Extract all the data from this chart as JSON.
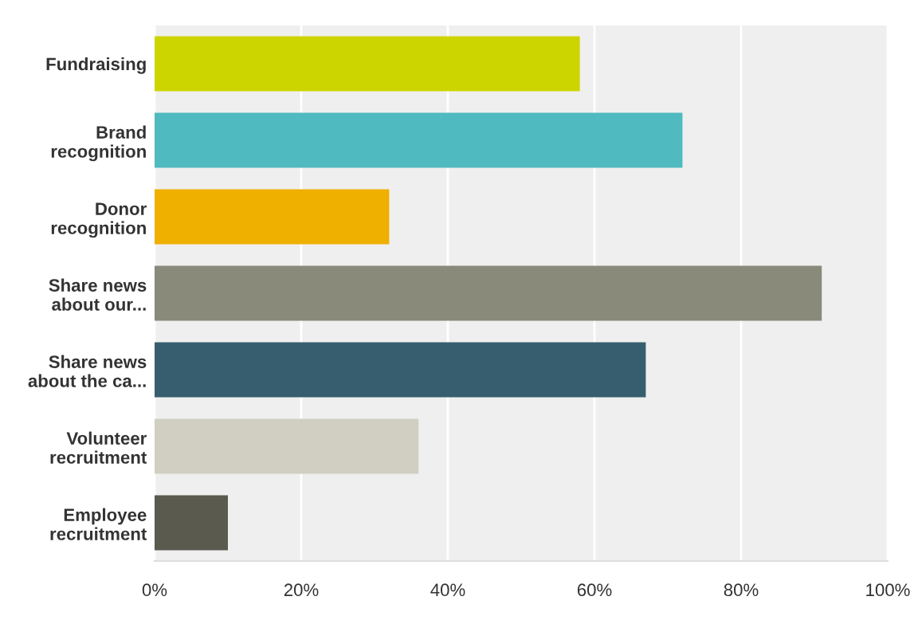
{
  "chart_data": {
    "type": "bar",
    "orientation": "horizontal",
    "categories": [
      "Fundraising",
      "Brand\nrecognition",
      "Donor\nrecognition",
      "Share news\nabout our...",
      "Share news\nabout the ca...",
      "Volunteer\nrecruitment",
      "Employee\nrecruitment"
    ],
    "values": [
      58,
      72,
      32,
      91,
      67,
      36,
      10
    ],
    "colors": [
      "#cdd500",
      "#4fbabf",
      "#f0b000",
      "#898a7a",
      "#365e6e",
      "#d0cfc2",
      "#5a5a4e"
    ],
    "xlim": [
      0,
      100
    ],
    "xticks": [
      {
        "value": 0,
        "label": "0%"
      },
      {
        "value": 20,
        "label": "20%"
      },
      {
        "value": 40,
        "label": "40%"
      },
      {
        "value": 60,
        "label": "60%"
      },
      {
        "value": 80,
        "label": "80%"
      },
      {
        "value": 100,
        "label": "100%"
      }
    ],
    "grid": "x"
  }
}
